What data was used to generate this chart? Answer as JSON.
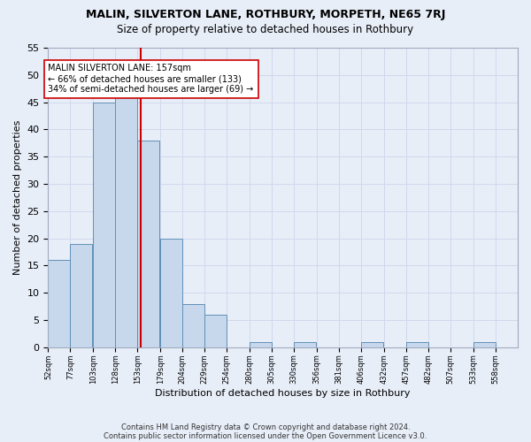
{
  "title": "MALIN, SILVERTON LANE, ROTHBURY, MORPETH, NE65 7RJ",
  "subtitle": "Size of property relative to detached houses in Rothbury",
  "xlabel": "Distribution of detached houses by size in Rothbury",
  "ylabel": "Number of detached properties",
  "bar_color": "#c8d8ec",
  "bar_edge_color": "#6090b8",
  "bins": [
    52,
    77,
    103,
    128,
    153,
    179,
    204,
    229,
    254,
    280,
    305,
    330,
    356,
    381,
    406,
    432,
    457,
    482,
    507,
    533,
    558
  ],
  "values": [
    16,
    19,
    45,
    46,
    38,
    20,
    8,
    6,
    0,
    1,
    0,
    1,
    0,
    0,
    1,
    0,
    1,
    0,
    0,
    1
  ],
  "tick_labels": [
    "52sqm",
    "77sqm",
    "103sqm",
    "128sqm",
    "153sqm",
    "179sqm",
    "204sqm",
    "229sqm",
    "254sqm",
    "280sqm",
    "305sqm",
    "330sqm",
    "356sqm",
    "381sqm",
    "406sqm",
    "432sqm",
    "457sqm",
    "482sqm",
    "507sqm",
    "533sqm",
    "558sqm"
  ],
  "property_size": 157,
  "vline_color": "#cc0000",
  "annotation_text": "MALIN SILVERTON LANE: 157sqm\n← 66% of detached houses are smaller (133)\n34% of semi-detached houses are larger (69) →",
  "annotation_box_color": "#ffffff",
  "annotation_box_edge_color": "#cc0000",
  "ylim": [
    0,
    55
  ],
  "yticks": [
    0,
    5,
    10,
    15,
    20,
    25,
    30,
    35,
    40,
    45,
    50,
    55
  ],
  "grid_color": "#d0d8ec",
  "footer1": "Contains HM Land Registry data © Crown copyright and database right 2024.",
  "footer2": "Contains public sector information licensed under the Open Government Licence v3.0.",
  "background_color": "#e8eef8"
}
